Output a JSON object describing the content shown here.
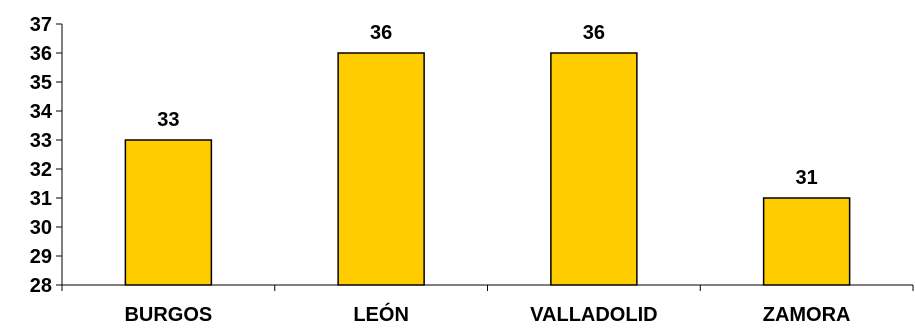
{
  "chart_data": {
    "type": "bar",
    "categories": [
      "BURGOS",
      "LEÓN",
      "VALLADOLID",
      "ZAMORA"
    ],
    "values": [
      33,
      36,
      36,
      31
    ],
    "data_labels": [
      "33",
      "36",
      "36",
      "31"
    ],
    "title": "",
    "xlabel": "",
    "ylabel": "",
    "ylim": [
      28,
      37
    ],
    "y_ticks": [
      "28",
      "29",
      "30",
      "31",
      "32",
      "33",
      "34",
      "35",
      "36",
      "37"
    ],
    "grid": false,
    "legend": "none",
    "colors": {
      "bar_fill": "#FFCC00",
      "bar_stroke": "#000000",
      "axis": "#000000",
      "text": "#000000"
    }
  }
}
